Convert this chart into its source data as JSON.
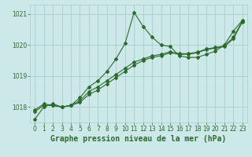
{
  "bg_color": "#cce8e8",
  "grid_color": "#aacccc",
  "line_color": "#2d6a2d",
  "xlabel": "Graphe pression niveau de la mer (hPa)",
  "ylim": [
    1017.5,
    1021.3
  ],
  "xlim": [
    -0.5,
    23.5
  ],
  "yticks": [
    1018,
    1019,
    1020,
    1021
  ],
  "xticks": [
    0,
    1,
    2,
    3,
    4,
    5,
    6,
    7,
    8,
    9,
    10,
    11,
    12,
    13,
    14,
    15,
    16,
    17,
    18,
    19,
    20,
    21,
    22,
    23
  ],
  "series1_x": [
    0,
    1,
    2,
    3,
    4,
    5,
    6,
    7,
    8,
    9,
    10,
    11,
    12,
    13,
    14,
    15,
    16,
    17,
    18,
    19,
    20,
    21,
    22,
    23
  ],
  "series1_y": [
    1017.6,
    1018.0,
    1018.1,
    1018.0,
    1018.05,
    1018.3,
    1018.65,
    1018.85,
    1019.15,
    1019.55,
    1020.05,
    1021.05,
    1020.6,
    1020.25,
    1020.0,
    1019.95,
    1019.65,
    1019.6,
    1019.6,
    1019.7,
    1019.8,
    1020.0,
    1020.45,
    1020.8
  ],
  "series2_x": [
    0,
    1,
    2,
    3,
    4,
    5,
    6,
    7,
    8,
    9,
    10,
    11,
    12,
    13,
    14,
    15,
    16,
    17,
    18,
    19,
    20,
    21,
    22,
    23
  ],
  "series2_y": [
    1017.9,
    1018.1,
    1018.05,
    1018.0,
    1018.05,
    1018.15,
    1018.4,
    1018.55,
    1018.75,
    1018.95,
    1019.15,
    1019.35,
    1019.5,
    1019.6,
    1019.65,
    1019.75,
    1019.7,
    1019.7,
    1019.75,
    1019.85,
    1019.9,
    1019.95,
    1020.2,
    1020.75
  ],
  "series3_x": [
    0,
    1,
    2,
    3,
    4,
    5,
    6,
    7,
    8,
    9,
    10,
    11,
    12,
    13,
    14,
    15,
    16,
    17,
    18,
    19,
    20,
    21,
    22,
    23
  ],
  "series3_y": [
    1017.85,
    1018.05,
    1018.05,
    1018.0,
    1018.05,
    1018.2,
    1018.5,
    1018.65,
    1018.85,
    1019.05,
    1019.25,
    1019.45,
    1019.55,
    1019.65,
    1019.7,
    1019.78,
    1019.72,
    1019.72,
    1019.77,
    1019.87,
    1019.92,
    1019.97,
    1020.25,
    1020.78
  ],
  "tick_fontsize": 5.5,
  "label_fontsize": 7.0,
  "marker": "D",
  "markersize": 2.0,
  "linewidth": 0.8
}
